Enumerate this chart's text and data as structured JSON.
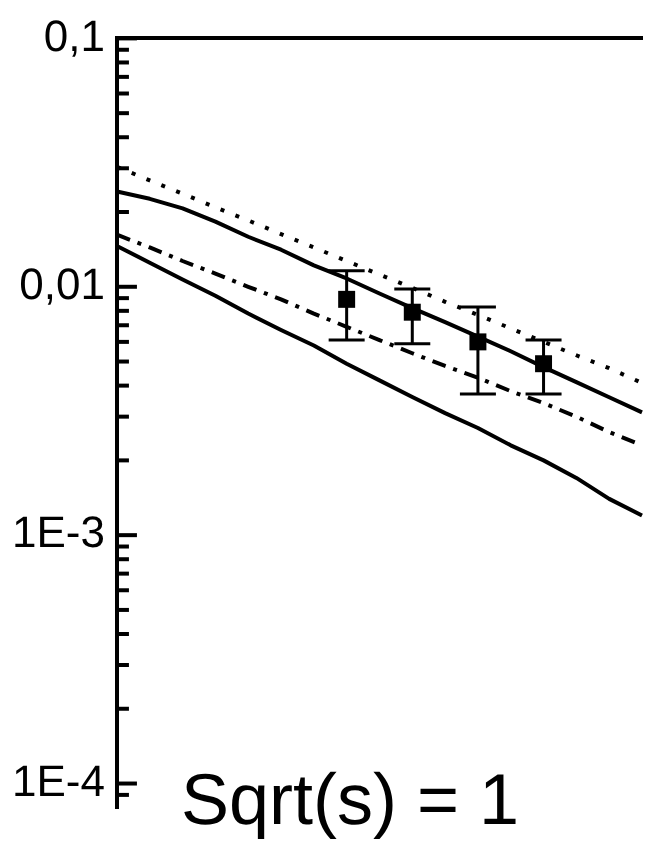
{
  "chart_data": {
    "type": "line",
    "categories": [
      null,
      null,
      null,
      null,
      null,
      null,
      null,
      null,
      null,
      null,
      null,
      null,
      null,
      null,
      null,
      null,
      null
    ],
    "ylim": [
      8e-05,
      0.1
    ],
    "log": "y",
    "grid": false,
    "legend": false,
    "tick_labels": "y",
    "marker": "none",
    "yticks": [
      {
        "value": 0.1,
        "label": "0,1"
      },
      {
        "value": 0.09,
        "label": null
      },
      {
        "value": 0.08,
        "label": null
      },
      {
        "value": 0.07,
        "label": null
      },
      {
        "value": 0.06,
        "label": null
      },
      {
        "value": 0.05,
        "label": null
      },
      {
        "value": 0.04,
        "label": null
      },
      {
        "value": 0.03,
        "label": null
      },
      {
        "value": 0.02,
        "label": null
      },
      {
        "value": 0.01,
        "label": "0,01"
      },
      {
        "value": 0.009,
        "label": null
      },
      {
        "value": 0.008,
        "label": null
      },
      {
        "value": 0.007,
        "label": null
      },
      {
        "value": 0.006,
        "label": null
      },
      {
        "value": 0.005,
        "label": null
      },
      {
        "value": 0.004,
        "label": null
      },
      {
        "value": 0.003,
        "label": null
      },
      {
        "value": 0.002,
        "label": null
      },
      {
        "value": 0.001,
        "label": "1E-3"
      },
      {
        "value": 0.0009,
        "label": null
      },
      {
        "value": 0.0008,
        "label": null
      },
      {
        "value": 0.0007,
        "label": null
      },
      {
        "value": 0.0006,
        "label": null
      },
      {
        "value": 0.0005,
        "label": null
      },
      {
        "value": 0.0004,
        "label": null
      },
      {
        "value": 0.0003,
        "label": null
      },
      {
        "value": 0.0002,
        "label": null
      },
      {
        "value": 0.0001,
        "label": "1E-4"
      },
      {
        "value": 9e-05,
        "label": null
      }
    ],
    "series": [
      {
        "type": "line",
        "color": "#000000",
        "line_style": "dotted",
        "values": [
          0.0304,
          0.0268,
          0.0237,
          0.0209,
          0.0185,
          0.0163,
          0.0144,
          0.0127,
          0.0112,
          0.0099,
          0.0087,
          0.0077,
          0.0068,
          0.006,
          0.0053,
          0.0047,
          0.0041
        ]
      },
      {
        "type": "line",
        "color": "#000000",
        "line_style": "solid",
        "values": [
          0.0242,
          0.0226,
          0.0207,
          0.0183,
          0.0159,
          0.0141,
          0.0122,
          0.0108,
          0.0094,
          0.0082,
          0.0072,
          0.0063,
          0.0055,
          0.00475,
          0.00413,
          0.00359,
          0.00312
        ]
      },
      {
        "type": "line",
        "color": "#000000",
        "line_style": "dashdot",
        "values": [
          0.0162,
          0.0144,
          0.0127,
          0.0113,
          0.01,
          0.0089,
          0.0078,
          0.0069,
          0.0061,
          0.0054,
          0.0048,
          0.0043,
          0.0038,
          0.0034,
          0.003,
          0.0026,
          0.0023
        ]
      },
      {
        "type": "line",
        "color": "#000000",
        "line_style": "solid",
        "values": [
          0.0146,
          0.0125,
          0.0107,
          0.0092,
          0.0078,
          0.0067,
          0.0058,
          0.0049,
          0.0042,
          0.0036,
          0.0031,
          0.0027,
          0.0023,
          0.002,
          0.0017,
          0.0014,
          0.0012
        ]
      },
      {
        "type": "scatter",
        "color": "#000000",
        "marker": "square",
        "values": [
          null,
          null,
          null,
          null,
          null,
          null,
          null,
          0.0089,
          null,
          0.0079,
          null,
          0.006,
          null,
          0.0049,
          null,
          null,
          null
        ],
        "errors": [
          null,
          null,
          null,
          null,
          null,
          null,
          null,
          [
            0.0061,
            0.0116
          ],
          null,
          [
            0.0059,
            0.0098
          ],
          null,
          [
            0.0037,
            0.0083
          ],
          null,
          [
            0.0037,
            0.0061
          ],
          null,
          null,
          null
        ]
      }
    ],
    "annotations": [
      "Sqrt(s) = 1"
    ]
  }
}
